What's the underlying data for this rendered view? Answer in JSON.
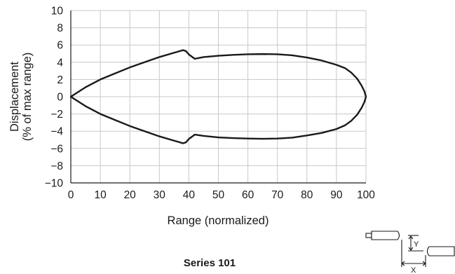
{
  "chart_data": {
    "type": "line",
    "xlabel": "Range (normalized)",
    "ylabel_lines": [
      "Displacement",
      "(% of max range)"
    ],
    "xlim": [
      0,
      100
    ],
    "ylim": [
      -10,
      10
    ],
    "xticks": [
      0,
      10,
      20,
      30,
      40,
      50,
      60,
      70,
      80,
      90,
      100
    ],
    "yticks": [
      10,
      8,
      6,
      4,
      2,
      0,
      -2,
      -4,
      -6,
      -8,
      -10
    ],
    "ytick_labels": [
      "10",
      "8",
      "6",
      "4",
      "2",
      "0",
      "−2",
      "−4",
      "−6",
      "−8",
      "−10"
    ],
    "grid": true,
    "series": [
      {
        "values": [
          [
            0,
            0
          ],
          [
            5,
            1.1
          ],
          [
            10,
            2.0
          ],
          [
            15,
            2.7
          ],
          [
            20,
            3.4
          ],
          [
            25,
            4.0
          ],
          [
            30,
            4.6
          ],
          [
            35,
            5.1
          ],
          [
            38,
            5.4
          ],
          [
            39,
            5.3
          ],
          [
            40,
            4.9
          ],
          [
            42,
            4.4
          ],
          [
            45,
            4.6
          ],
          [
            50,
            4.75
          ],
          [
            55,
            4.85
          ],
          [
            60,
            4.92
          ],
          [
            65,
            4.95
          ],
          [
            70,
            4.92
          ],
          [
            75,
            4.8
          ],
          [
            80,
            4.55
          ],
          [
            85,
            4.2
          ],
          [
            90,
            3.7
          ],
          [
            93,
            3.3
          ],
          [
            95,
            2.8
          ],
          [
            97,
            2.1
          ],
          [
            98.5,
            1.3
          ],
          [
            99.5,
            0.6
          ],
          [
            100,
            0
          ],
          [
            99.5,
            -0.6
          ],
          [
            98.5,
            -1.3
          ],
          [
            97,
            -2.1
          ],
          [
            95,
            -2.8
          ],
          [
            93,
            -3.3
          ],
          [
            90,
            -3.75
          ],
          [
            85,
            -4.2
          ],
          [
            80,
            -4.5
          ],
          [
            75,
            -4.75
          ],
          [
            70,
            -4.85
          ],
          [
            65,
            -4.88
          ],
          [
            60,
            -4.85
          ],
          [
            55,
            -4.8
          ],
          [
            50,
            -4.72
          ],
          [
            45,
            -4.55
          ],
          [
            42,
            -4.4
          ],
          [
            40,
            -4.9
          ],
          [
            39,
            -5.3
          ],
          [
            38,
            -5.4
          ],
          [
            35,
            -5.1
          ],
          [
            30,
            -4.6
          ],
          [
            25,
            -4.0
          ],
          [
            20,
            -3.4
          ],
          [
            15,
            -2.7
          ],
          [
            10,
            -2.0
          ],
          [
            5,
            -1.1
          ],
          [
            0,
            0
          ]
        ]
      }
    ]
  },
  "caption": "Series 101",
  "diagram": {
    "y_label": "Y",
    "x_label": "X"
  },
  "colors": {
    "grid": "#c8c8c8",
    "axis": "#1a1a1a",
    "curve": "#1a1a1a"
  }
}
